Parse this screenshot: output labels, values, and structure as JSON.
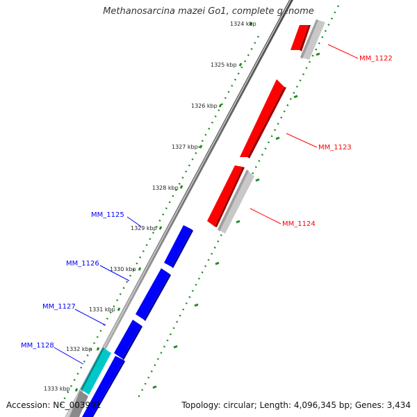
{
  "title": "Methanosarcina mazei Go1, complete genome",
  "footer": {
    "accession": "Accession: NC_003901",
    "summary": "Topology: circular; Length: 4,096,345 bp; Genes: 3,434"
  },
  "ticks": [
    "1324 kbp",
    "1325 kbp",
    "1326 kbp",
    "1327 kbp",
    "1328 kbp",
    "1329 kbp",
    "1330 kbp",
    "1331 kbp",
    "1332 kbp",
    "1333 kbp"
  ],
  "genes": [
    {
      "name": "MM_1122",
      "strand": "reverse",
      "color": "#ff0000"
    },
    {
      "name": "MM_1123",
      "strand": "reverse",
      "color": "#ff0000"
    },
    {
      "name": "MM_1124",
      "strand": "reverse",
      "color": "#ff0000"
    },
    {
      "name": "MM_1125",
      "strand": "forward",
      "color": "#0000ff"
    },
    {
      "name": "MM_1126",
      "strand": "forward",
      "color": "#0000ff"
    },
    {
      "name": "MM_1127",
      "strand": "forward",
      "color": "#0000ff"
    },
    {
      "name": "MM_1128",
      "strand": "forward",
      "color": "#0000ff"
    }
  ],
  "colors": {
    "reverse_gene": "#ff0000",
    "forward_gene": "#0000ff",
    "cds_forward": "#00c8c8",
    "cds_reverse": "#c8c8c8",
    "backbone": "#888888",
    "tick_marks": "#228b22"
  }
}
